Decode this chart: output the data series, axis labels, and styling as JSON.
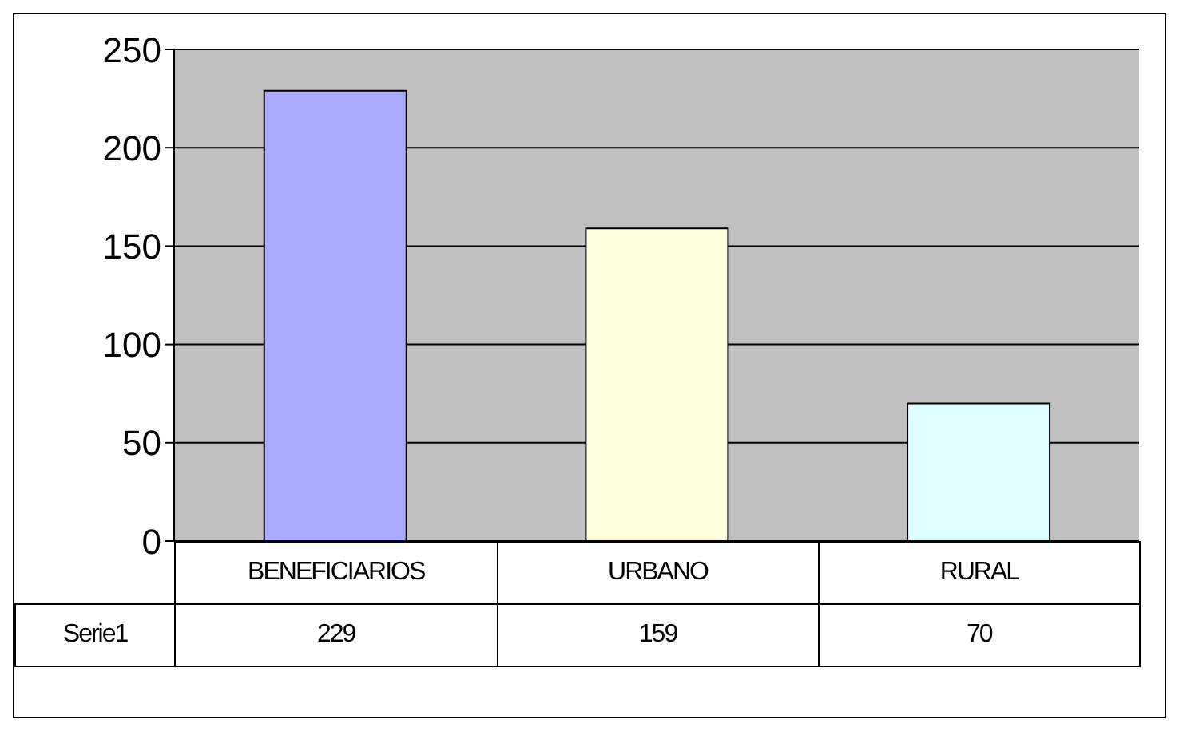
{
  "chart_data": {
    "type": "bar",
    "categories": [
      "BENEFICIARIOS",
      "URBANO",
      "RURAL"
    ],
    "series": [
      {
        "name": "Serie1",
        "colors": [
          "#aaaaff",
          "#ffffdd",
          "#ddffff"
        ],
        "values": [
          229,
          159,
          70
        ]
      }
    ],
    "ylim": [
      0,
      250
    ],
    "yticks": [
      0,
      50,
      100,
      150,
      200,
      250
    ],
    "grid": "y",
    "data_labels": true
  }
}
